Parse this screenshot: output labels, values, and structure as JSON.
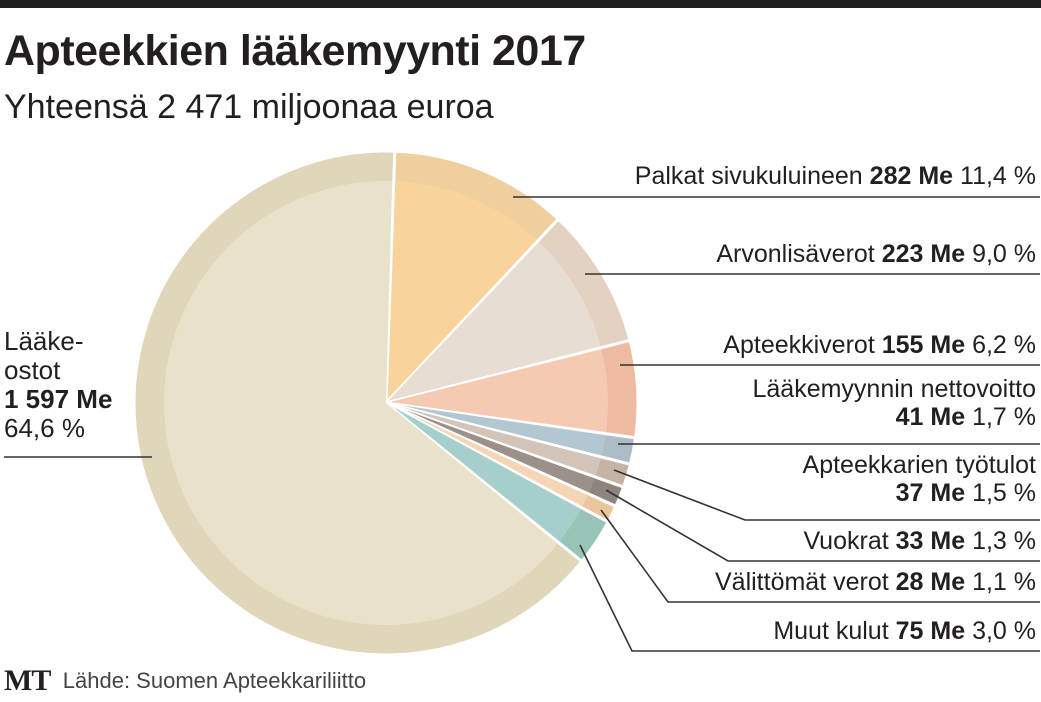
{
  "header": {
    "title": "Apteekkien lääkemyynti 2017",
    "subtitle": "Yhteensä 2 471 miljoonaa euroa"
  },
  "footer": {
    "logo": "MT",
    "source": "Lähde: Suomen Apteekkariliitto"
  },
  "colors": {
    "topbar": "#231f20",
    "text": "#231f20",
    "leader": "#333333"
  },
  "chart_data": {
    "type": "pie",
    "title": "Apteekkien lääkemyynti 2017",
    "subtitle": "Yhteensä 2 471 miljoonaa euroa",
    "unit": "Me",
    "total": 2471,
    "start_angle_deg": 2,
    "direction": "clockwise",
    "slices": [
      {
        "name": "Palkat sivukuluineen",
        "value": 282,
        "value_label": "282 Me",
        "percent": 11.4,
        "percent_label": "11,4 %",
        "color": "#f8d39a",
        "rim": "#efcf9d"
      },
      {
        "name": "Arvonlisäverot",
        "value": 223,
        "value_label": "223 Me",
        "percent": 9.0,
        "percent_label": "9,0 %",
        "color": "#e8ddd3",
        "rim": "#e3d2c1"
      },
      {
        "name": "Apteekkiverot",
        "value": 155,
        "value_label": "155 Me",
        "percent": 6.2,
        "percent_label": "6,2 %",
        "color": "#f5c9b2",
        "rim": "#ecbba2"
      },
      {
        "name": "Lääkemyynnin nettovoitto",
        "value": 41,
        "value_label": "41 Me",
        "percent": 1.7,
        "percent_label": "1,7 %",
        "color": "#b3c7d3",
        "rim": "#aebcc8"
      },
      {
        "name": "Apteekkarien työtulot",
        "value": 37,
        "value_label": "37 Me",
        "percent": 1.5,
        "percent_label": "1,5 %",
        "color": "#d2c4b8",
        "rim": "#c5b4a6"
      },
      {
        "name": "Vuokrat",
        "value": 33,
        "value_label": "33 Me",
        "percent": 1.3,
        "percent_label": "1,3 %",
        "color": "#9b918a",
        "rim": "#8e847e"
      },
      {
        "name": "Välittömät verot",
        "value": 28,
        "value_label": "28 Me",
        "percent": 1.1,
        "percent_label": "1,1 %",
        "color": "#f4d5b6",
        "rim": "#ebc59c"
      },
      {
        "name": "Muut kulut",
        "value": 75,
        "value_label": "75 Me",
        "percent": 3.0,
        "percent_label": "3,0 %",
        "color": "#a6cfcb",
        "rim": "#98c4b8"
      },
      {
        "name": "Lääkeostot",
        "value": 1597,
        "value_label": "1 597 Me",
        "percent": 64.6,
        "percent_label": "64,6 %",
        "color": "#e9e2cb",
        "rim": "#e0d6b9"
      }
    ]
  },
  "labels": {
    "palkat": {
      "name": "Palkat sivukuluineen",
      "value": "282 Me",
      "pct": "11,4 %"
    },
    "arvonlisa": {
      "name": "Arvonlisäverot",
      "value": "223 Me",
      "pct": "9,0 %"
    },
    "apteekkiverot": {
      "name": "Apteekkiverot",
      "value": "155 Me",
      "pct": "6,2 %"
    },
    "nettovoitto": {
      "name": "Lääkemyynnin nettovoitto",
      "value": "41 Me",
      "pct": "1,7 %"
    },
    "tyotulot": {
      "name": "Apteekkarien työtulot",
      "value": "37 Me",
      "pct": "1,5 %"
    },
    "vuokrat": {
      "name": "Vuokrat",
      "value": "33 Me",
      "pct": "1,3 %"
    },
    "valittomat": {
      "name": "Välittömät verot",
      "value": "28 Me",
      "pct": "1,1 %"
    },
    "muut": {
      "name": "Muut kulut",
      "value": "75 Me",
      "pct": "3,0 %"
    },
    "laakeostot": {
      "name_line1": "Lääke-",
      "name_line2": "ostot",
      "value": "1 597 Me",
      "pct": "64,6 %"
    }
  }
}
